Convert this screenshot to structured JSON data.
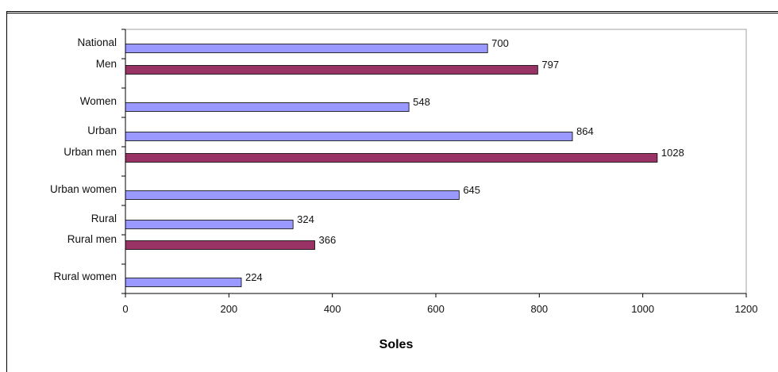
{
  "chart_data": {
    "type": "bar",
    "orientation": "horizontal",
    "categories": [
      "National",
      "Men",
      "Women",
      "Urban",
      "Urban men",
      "Urban women",
      "Rural",
      "Rural men",
      "Rural women"
    ],
    "values": [
      700,
      797,
      548,
      864,
      1028,
      645,
      324,
      366,
      224
    ],
    "value_labels": [
      "700",
      "797",
      "548",
      "864",
      "1028",
      "645",
      "324",
      "366",
      "224"
    ],
    "bar_colors": [
      "#9999ff",
      "#993366",
      "#9999ff",
      "#9999ff",
      "#993366",
      "#9999ff",
      "#9999ff",
      "#993366",
      "#9999ff"
    ],
    "title": "",
    "xlabel": "Soles",
    "ylabel": "",
    "xlim": [
      0,
      1200
    ],
    "xticks": [
      0,
      200,
      400,
      600,
      800,
      1000,
      1200
    ],
    "xtick_labels": [
      "0",
      "200",
      "400",
      "600",
      "800",
      "1000",
      "1200"
    ],
    "grid": false,
    "legend": false
  }
}
